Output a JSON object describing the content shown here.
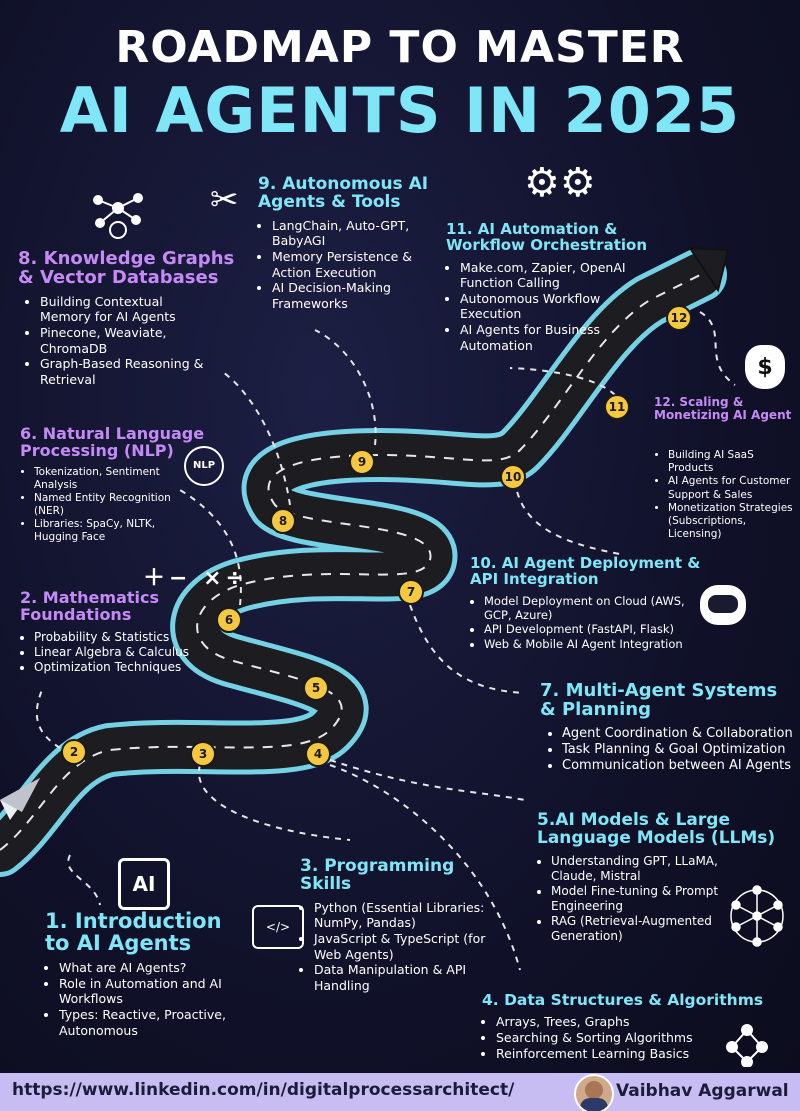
{
  "title": {
    "line1": "ROADMAP TO MASTER",
    "line2": "AI AGENTS IN 2025"
  },
  "sections": {
    "s1": {
      "title": "1. Introduction\nto AI Agents",
      "items": [
        "What are AI Agents?",
        "Role in Automation and AI Workflows",
        "Types: Reactive, Proactive, Autonomous"
      ]
    },
    "s2": {
      "title": "2. Mathematics\nFoundations",
      "items": [
        "Probability & Statistics",
        "Linear Algebra & Calculus",
        "Optimization Techniques"
      ]
    },
    "s3": {
      "title": "3. Programming\nSkills",
      "items": [
        "Python (Essential Libraries: NumPy, Pandas)",
        "JavaScript & TypeScript (for Web Agents)",
        "Data Manipulation & API Handling"
      ]
    },
    "s4": {
      "title": "4. Data Structures & Algorithms",
      "items": [
        "Arrays, Trees, Graphs",
        "Searching & Sorting Algorithms",
        "Reinforcement Learning Basics"
      ]
    },
    "s5": {
      "title": "5.AI Models & Large\nLanguage Models (LLMs)",
      "items": [
        "Understanding GPT, LLaMA, Claude, Mistral",
        "Model Fine-tuning & Prompt Engineering",
        "RAG (Retrieval-Augmented Generation)"
      ]
    },
    "s6": {
      "title": "6. Natural Language\nProcessing (NLP)",
      "items": [
        "Tokenization, Sentiment Analysis",
        "Named Entity Recognition (NER)",
        "Libraries: SpaCy, NLTK, Hugging Face"
      ]
    },
    "s7": {
      "title": "7. Multi-Agent Systems\n& Planning",
      "items": [
        "Agent Coordination & Collaboration",
        "Task Planning & Goal Optimization",
        "Communication between AI Agents"
      ]
    },
    "s8": {
      "title": "8. Knowledge Graphs\n& Vector Databases",
      "items": [
        "Building Contextual Memory for AI Agents",
        "Pinecone, Weaviate, ChromaDB",
        "Graph-Based Reasoning & Retrieval"
      ]
    },
    "s9": {
      "title": "9. Autonomous AI\nAgents & Tools",
      "items": [
        "LangChain, Auto-GPT, BabyAGI",
        "Memory Persistence & Action Execution",
        "AI Decision-Making Frameworks"
      ]
    },
    "s10": {
      "title": "10. AI Agent Deployment &\nAPI Integration",
      "items": [
        "Model Deployment on Cloud (AWS, GCP, Azure)",
        "API Development (FastAPI, Flask)",
        "Web & Mobile AI Agent Integration"
      ]
    },
    "s11": {
      "title": "11. AI Automation &\nWorkflow Orchestration",
      "items": [
        "Make.com, Zapier, OpenAI Function Calling",
        "Autonomous Workflow Execution",
        "AI Agents for Business Automation"
      ]
    },
    "s12": {
      "title": "12. Scaling &\nMonetizing AI Agent",
      "items": [
        "Building AI SaaS Products",
        "AI Agents for Customer Support & Sales",
        "Monetization Strategies (Subscriptions, Licensing)"
      ]
    }
  },
  "markers": [
    "2",
    "3",
    "4",
    "5",
    "6",
    "7",
    "8",
    "9",
    "10",
    "11",
    "12"
  ],
  "icons": {
    "ai_chip_label": "AI",
    "nlp_label": "NLP",
    "dollar": "$",
    "code_label": "</>"
  },
  "footer": {
    "url": "https://www.linkedin.com/in/digitalprocessarchitect/",
    "author": "Vaibhav Aggarwal"
  },
  "colors": {
    "purple": "#c58af6",
    "cyan": "#7fe6f7",
    "marker": "#f5c840",
    "footer_bg": "#c7bdf3"
  }
}
